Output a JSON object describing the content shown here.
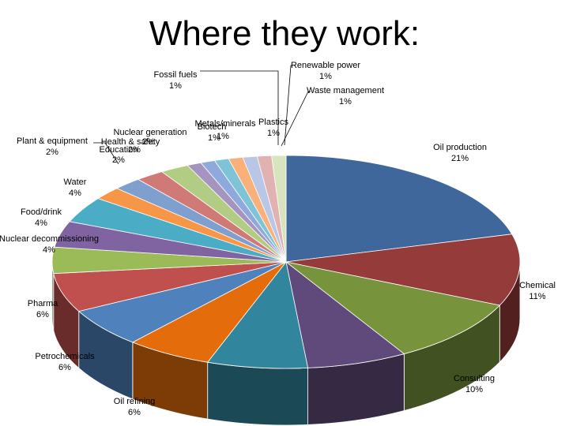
{
  "slide": {
    "title": "Where they work:"
  },
  "chart_data": {
    "type": "pie",
    "title": "Where they work:",
    "three_d": true,
    "slices": [
      {
        "label": "Oil production",
        "value": 21,
        "pct_text": "21%",
        "color": "#3f679b"
      },
      {
        "label": "Chemical",
        "value": 11,
        "pct_text": "11%",
        "color": "#953b39"
      },
      {
        "label": "Consulting",
        "value": 10,
        "pct_text": "10%",
        "color": "#77933c"
      },
      {
        "label": "",
        "value": 7,
        "pct_text": "",
        "color": "#604a7b"
      },
      {
        "label": "",
        "value": 7,
        "pct_text": "",
        "color": "#31859c"
      },
      {
        "label": "Oil refining",
        "value": 6,
        "pct_text": "6%",
        "color": "#e46c0a"
      },
      {
        "label": "Petrochemicals",
        "value": 6,
        "pct_text": "6%",
        "color": "#4f81bd"
      },
      {
        "label": "Pharma",
        "value": 6,
        "pct_text": "6%",
        "color": "#c0504d"
      },
      {
        "label": "Nuclear decommissioning",
        "value": 4,
        "pct_text": "4%",
        "color": "#9bbb59"
      },
      {
        "label": "Food/drink",
        "value": 4,
        "pct_text": "4%",
        "color": "#8064a2"
      },
      {
        "label": "Water",
        "value": 4,
        "pct_text": "4%",
        "color": "#4bacc6"
      },
      {
        "label": "Plant & equipment",
        "value": 2,
        "pct_text": "2%",
        "color": "#f79646"
      },
      {
        "label": "Nuclear generation",
        "value": 2,
        "pct_text": "2%",
        "color": "#7f9fcf"
      },
      {
        "label": "Health & safety",
        "value": 2,
        "pct_text": "2%",
        "color": "#d07a77"
      },
      {
        "label": "Education",
        "value": 2,
        "pct_text": "2%",
        "color": "#b3cc84"
      },
      {
        "label": "Fossil fuels",
        "value": 1,
        "pct_text": "1%",
        "color": "#a593c0"
      },
      {
        "label": "Metals/minerals",
        "value": 1,
        "pct_text": "1%",
        "color": "#8ea9db"
      },
      {
        "label": "Biotech",
        "value": 1,
        "pct_text": "1%",
        "color": "#7fc4d6"
      },
      {
        "label": "Renewable power",
        "value": 1,
        "pct_text": "1%",
        "color": "#f9b07a"
      },
      {
        "label": "Waste management",
        "value": 1,
        "pct_text": "1%",
        "color": "#b8c7e6"
      },
      {
        "label": "Plastics",
        "value": 1,
        "pct_text": "1%",
        "color": "#e0b3b2"
      },
      {
        "label": "",
        "value": 1,
        "pct_text": "",
        "color": "#d7e4bd"
      }
    ]
  }
}
